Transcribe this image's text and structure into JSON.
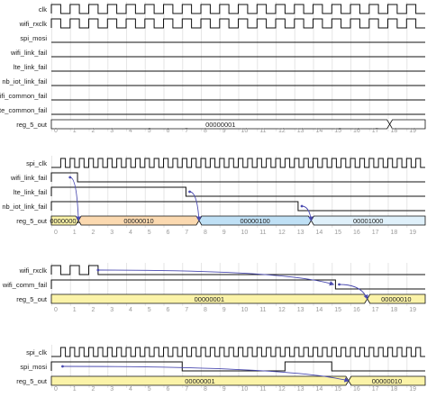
{
  "colors": {
    "wave": "#111111",
    "grid": "#e6e6e6",
    "arrow": "#4a4ab0",
    "bus_white": "#ffffff",
    "bus_yellow": "#fbf3a8",
    "bus_orange": "#fbd9b0",
    "bus_blue": "#bfe0f5",
    "bus_lightblue": "#dff0fa",
    "tick": "#9a9a9a"
  },
  "ticks": [
    "0",
    "1",
    "2",
    "3",
    "4",
    "5",
    "6",
    "7",
    "8",
    "9",
    "10",
    "11",
    "12",
    "13",
    "14",
    "15",
    "16",
    "17",
    "18",
    "19"
  ],
  "diagrams": [
    {
      "id": "d1",
      "signals": [
        {
          "name": "clk",
          "type": "clock",
          "period": 1
        },
        {
          "name": "wifi_rxclk",
          "type": "clock",
          "period": 1
        },
        {
          "name": "spi_mosi",
          "type": "low"
        },
        {
          "name": "wifi_link_fail",
          "type": "low"
        },
        {
          "name": "lte_link_fail",
          "type": "low"
        },
        {
          "name": "nb_iot_link_fail",
          "type": "low"
        },
        {
          "name": "wifi_common_fail",
          "type": "low"
        },
        {
          "name": "lte_common_fail",
          "type": "low"
        },
        {
          "name": "reg_5_out",
          "type": "bus",
          "segments": [
            {
              "from": 0,
              "to": 18.1,
              "value": "00000001",
              "color": "bus_white"
            },
            {
              "from": 18.1,
              "to": 20,
              "value": "",
              "color": "bus_white"
            }
          ]
        }
      ],
      "arrows": []
    },
    {
      "id": "d2",
      "signals": [
        {
          "name": "spi_clk",
          "type": "clock",
          "period": 0.5,
          "start": 0.5
        },
        {
          "name": "wifi_link_fail",
          "type": "level",
          "high": [
            [
              0,
              1.4
            ]
          ]
        },
        {
          "name": "lte_link_fail",
          "type": "level",
          "high": [
            [
              0,
              7.2
            ]
          ]
        },
        {
          "name": "nb_iot_link_fail",
          "type": "level",
          "high": [
            [
              0,
              13.2
            ]
          ]
        },
        {
          "name": "reg_5_out",
          "type": "bus",
          "segments": [
            {
              "from": 0,
              "to": 1.45,
              "value": "00000001",
              "color": "bus_yellow"
            },
            {
              "from": 1.45,
              "to": 7.9,
              "value": "00000010",
              "color": "bus_orange"
            },
            {
              "from": 7.9,
              "to": 13.9,
              "value": "00000100",
              "color": "bus_blue"
            },
            {
              "from": 13.9,
              "to": 20,
              "value": "00001000",
              "color": "bus_lightblue"
            }
          ]
        }
      ],
      "arrows": [
        {
          "from": {
            "t": 1.0,
            "sig": 1
          },
          "to": {
            "t": 1.45,
            "sig": 4
          },
          "label": "a"
        },
        {
          "from": {
            "t": 7.4,
            "sig": 2
          },
          "to": {
            "t": 7.9,
            "sig": 4
          },
          "label": "b"
        },
        {
          "from": {
            "t": 13.4,
            "sig": 3
          },
          "to": {
            "t": 13.9,
            "sig": 4
          },
          "label": "c"
        }
      ]
    },
    {
      "id": "d3",
      "signals": [
        {
          "name": "wifi_rxclk",
          "type": "clock",
          "period": 1,
          "stop": 2.5
        },
        {
          "name": "wifi_comm_fail",
          "type": "level",
          "high": [
            [
              0,
              15.2
            ]
          ]
        },
        {
          "name": "reg_5_out",
          "type": "bus",
          "segments": [
            {
              "from": 0,
              "to": 16.9,
              "value": "00000001",
              "color": "bus_yellow"
            },
            {
              "from": 16.9,
              "to": 20,
              "value": "00000010",
              "color": "bus_yellow"
            }
          ]
        }
      ],
      "arrows": [
        {
          "from": {
            "t": 2.5,
            "sig": 0
          },
          "to": {
            "t": 15.1,
            "sig": 1
          },
          "label": "a"
        },
        {
          "from": {
            "t": 15.4,
            "sig": 1
          },
          "to": {
            "t": 16.9,
            "sig": 2
          },
          "label": "b"
        }
      ]
    },
    {
      "id": "d4",
      "signals": [
        {
          "name": "spi_clk",
          "type": "clock",
          "period": 0.5,
          "start": 0.5
        },
        {
          "name": "spi_mosi",
          "type": "level",
          "high": [
            [
              0,
              7
            ],
            [
              12.5,
              15
            ]
          ]
        },
        {
          "name": "reg_5_out",
          "type": "bus",
          "segments": [
            {
              "from": 0,
              "to": 15.9,
              "value": "00000001",
              "color": "bus_yellow"
            },
            {
              "from": 15.9,
              "to": 20,
              "value": "00000010",
              "color": "bus_yellow"
            }
          ]
        }
      ],
      "arrows": [
        {
          "from": {
            "t": 0.6,
            "sig": 1
          },
          "to": {
            "t": 15.9,
            "sig": 2
          },
          "label": "a"
        }
      ]
    }
  ]
}
